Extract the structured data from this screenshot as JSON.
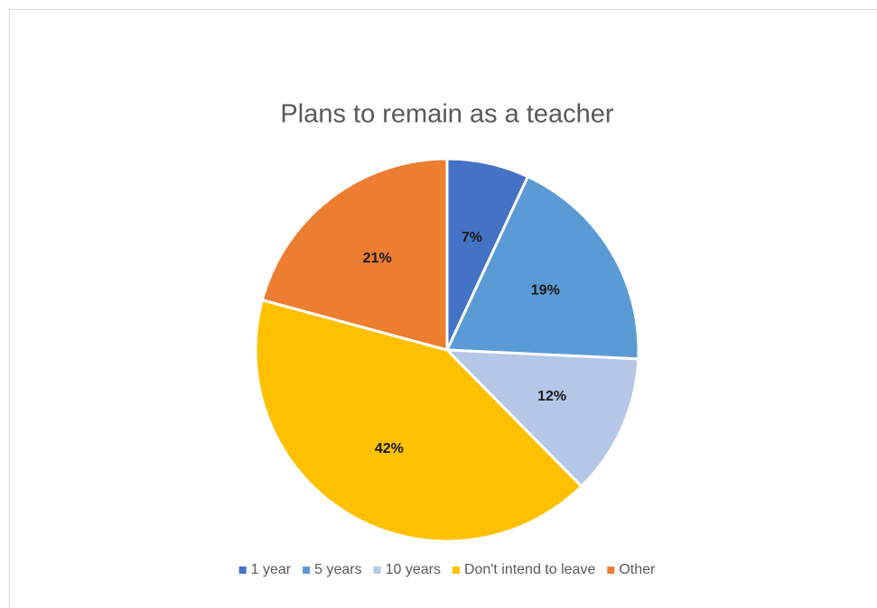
{
  "chart_data": {
    "type": "pie",
    "title": "Plans to remain as a teacher",
    "categories": [
      "1 year",
      "5 years",
      "10 years",
      "Don't intend to leave",
      "Other"
    ],
    "values": [
      7,
      19,
      12,
      42,
      21
    ],
    "value_labels": [
      "7%",
      "19%",
      "12%",
      "42%",
      "21%"
    ],
    "colors": [
      "#4472c4",
      "#5b9bd5",
      "#b4c7e7",
      "#ffc000",
      "#ed7d31"
    ],
    "legend": "bottom"
  }
}
